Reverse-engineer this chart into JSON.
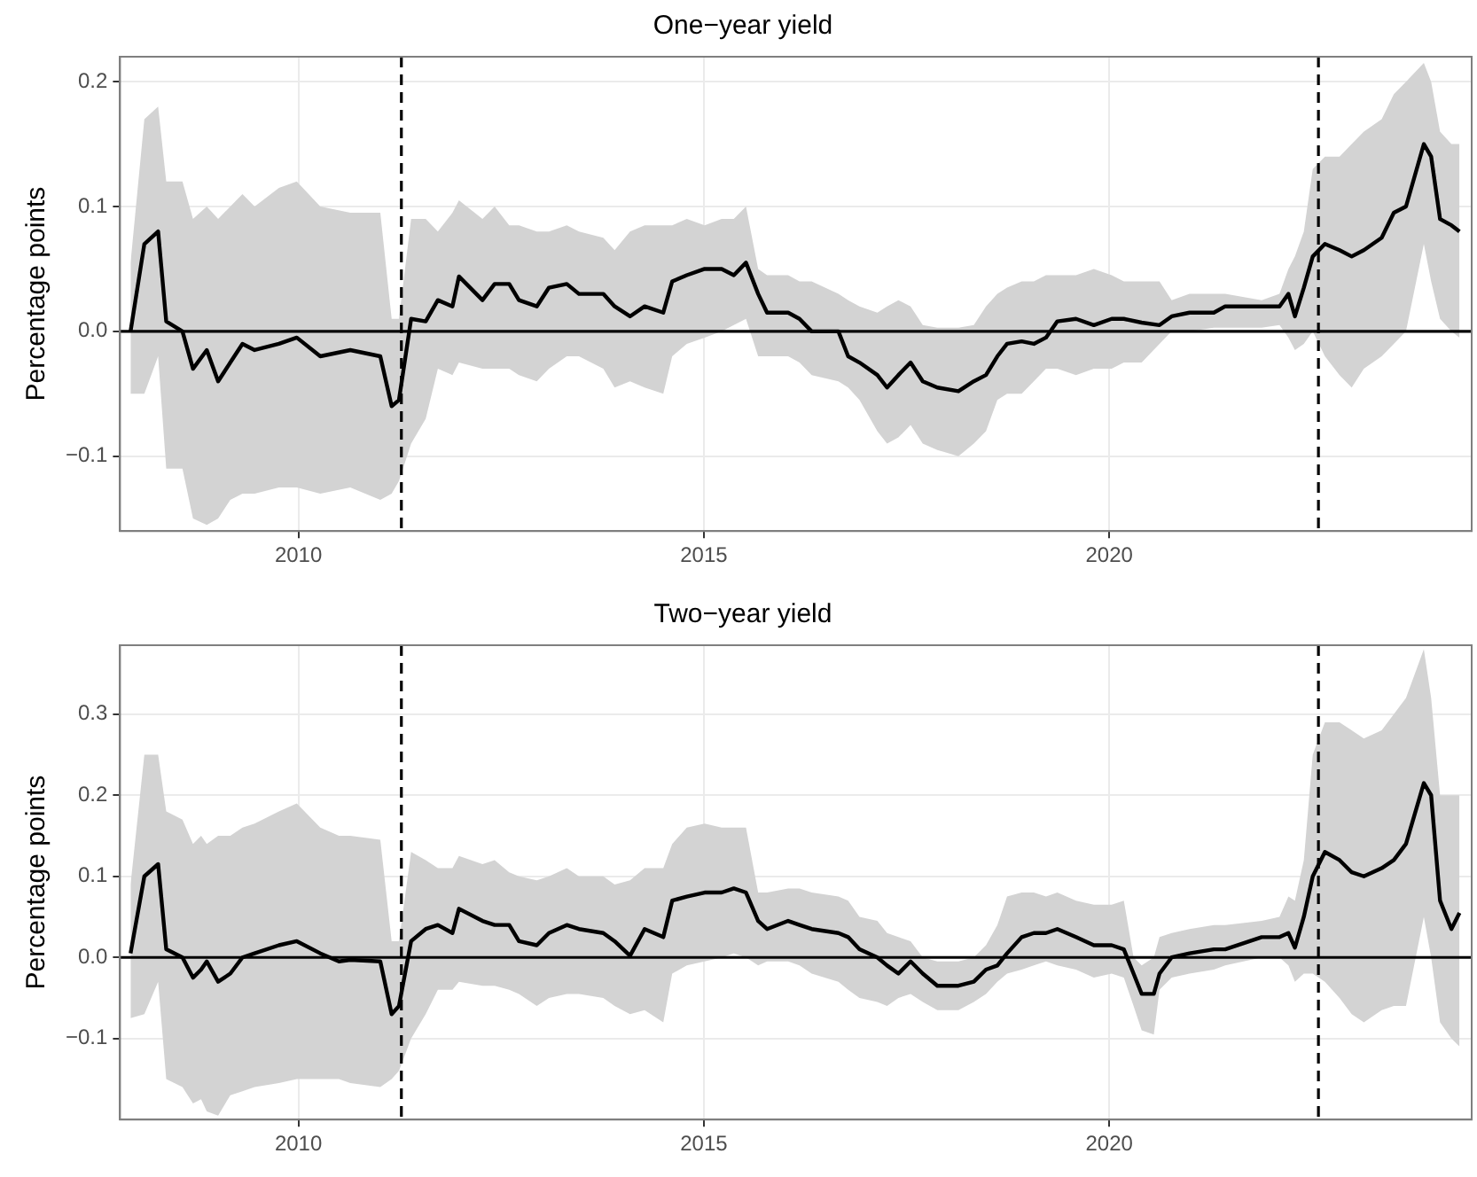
{
  "chart_data": [
    {
      "type": "line",
      "title": "One−year yield",
      "ylabel": "Percentage points",
      "grid": true,
      "xlim": [
        2007.8,
        2024.47
      ],
      "xticks": [
        2010,
        2015,
        2020
      ],
      "ylim": [
        -0.16,
        0.22
      ],
      "yticks": [
        {
          "value": -0.1,
          "label": "−0.1"
        },
        {
          "value": 0,
          "label": "0.0"
        },
        {
          "value": 0.1,
          "label": "0.1"
        },
        {
          "value": 0.2,
          "label": "0.2"
        }
      ],
      "ref_lines": [
        {
          "axis": "y",
          "value": 0,
          "color": "#000000",
          "line_style": "solid"
        },
        {
          "axis": "x",
          "value": 2011.27,
          "color": "#000000",
          "line_style": "dashed"
        },
        {
          "axis": "x",
          "value": 2022.58,
          "color": "#000000",
          "line_style": "dashed"
        }
      ],
      "x": [
        2007.93,
        2008.1,
        2008.27,
        2008.37,
        2008.57,
        2008.7,
        2008.87,
        2009.01,
        2009.16,
        2009.31,
        2009.46,
        2009.76,
        2009.98,
        2010.27,
        2010.64,
        2011.01,
        2011.15,
        2011.24,
        2011.39,
        2011.57,
        2011.72,
        2011.9,
        2011.98,
        2012.27,
        2012.42,
        2012.6,
        2012.72,
        2012.94,
        2013.09,
        2013.31,
        2013.46,
        2013.76,
        2013.9,
        2014.09,
        2014.27,
        2014.5,
        2014.61,
        2014.79,
        2015.01,
        2015.22,
        2015.37,
        2015.52,
        2015.67,
        2015.78,
        2016.04,
        2016.18,
        2016.33,
        2016.66,
        2016.78,
        2016.92,
        2017.14,
        2017.26,
        2017.4,
        2017.55,
        2017.7,
        2017.88,
        2018.14,
        2018.33,
        2018.48,
        2018.62,
        2018.74,
        2018.92,
        2019.07,
        2019.22,
        2019.36,
        2019.59,
        2019.81,
        2020.03,
        2020.18,
        2020.4,
        2020.62,
        2020.77,
        2020.99,
        2021.29,
        2021.43,
        2021.88,
        2022.1,
        2022.21,
        2022.29,
        2022.4,
        2022.51,
        2022.66,
        2022.84,
        2022.99,
        2023.14,
        2023.36,
        2023.51,
        2023.66,
        2023.88,
        2023.97,
        2024.08,
        2024.22,
        2024.32
      ],
      "series": [
        {
          "color": "#000000",
          "values": [
            0,
            0.07,
            0.08,
            0.008,
            0,
            -0.03,
            -0.015,
            -0.04,
            -0.025,
            -0.01,
            -0.015,
            -0.01,
            -0.005,
            -0.02,
            -0.015,
            -0.02,
            -0.06,
            -0.055,
            0.01,
            0.008,
            0.025,
            0.02,
            0.044,
            0.025,
            0.038,
            0.038,
            0.025,
            0.02,
            0.035,
            0.038,
            0.03,
            0.03,
            0.02,
            0.012,
            0.02,
            0.015,
            0.04,
            0.045,
            0.05,
            0.05,
            0.045,
            0.055,
            0.03,
            0.015,
            0.015,
            0.01,
            0,
            0,
            -0.02,
            -0.025,
            -0.035,
            -0.045,
            -0.035,
            -0.025,
            -0.04,
            -0.045,
            -0.048,
            -0.04,
            -0.035,
            -0.02,
            -0.01,
            -0.008,
            -0.01,
            -0.005,
            0.008,
            0.01,
            0.005,
            0.01,
            0.01,
            0.007,
            0.005,
            0.012,
            0.015,
            0.015,
            0.02,
            0.02,
            0.02,
            0.03,
            0.012,
            0.035,
            0.06,
            0.07,
            0.065,
            0.06,
            0.065,
            0.075,
            0.095,
            0.1,
            0.15,
            0.14,
            0.09,
            0.085,
            0.08
          ],
          "upper": [
            0.055,
            0.17,
            0.18,
            0.12,
            0.12,
            0.09,
            0.1,
            0.09,
            0.1,
            0.11,
            0.1,
            0.115,
            0.12,
            0.1,
            0.095,
            0.095,
            0.01,
            0.01,
            0.09,
            0.09,
            0.08,
            0.095,
            0.105,
            0.09,
            0.1,
            0.085,
            0.085,
            0.08,
            0.08,
            0.085,
            0.08,
            0.075,
            0.065,
            0.08,
            0.085,
            0.085,
            0.085,
            0.09,
            0.085,
            0.09,
            0.09,
            0.1,
            0.05,
            0.045,
            0.045,
            0.04,
            0.04,
            0.03,
            0.025,
            0.02,
            0.015,
            0.02,
            0.025,
            0.02,
            0.005,
            0.003,
            0.003,
            0.005,
            0.02,
            0.03,
            0.035,
            0.04,
            0.04,
            0.045,
            0.045,
            0.045,
            0.05,
            0.045,
            0.04,
            0.04,
            0.04,
            0.025,
            0.03,
            0.03,
            0.03,
            0.025,
            0.03,
            0.05,
            0.06,
            0.08,
            0.13,
            0.14,
            0.14,
            0.15,
            0.16,
            0.17,
            0.19,
            0.2,
            0.215,
            0.2,
            0.16,
            0.15,
            0.15
          ],
          "lower": [
            -0.05,
            -0.05,
            -0.02,
            -0.11,
            -0.11,
            -0.15,
            -0.155,
            -0.15,
            -0.135,
            -0.13,
            -0.13,
            -0.125,
            -0.125,
            -0.13,
            -0.125,
            -0.135,
            -0.13,
            -0.12,
            -0.09,
            -0.07,
            -0.03,
            -0.035,
            -0.025,
            -0.03,
            -0.03,
            -0.03,
            -0.035,
            -0.04,
            -0.03,
            -0.02,
            -0.02,
            -0.03,
            -0.045,
            -0.04,
            -0.045,
            -0.05,
            -0.02,
            -0.01,
            -0.005,
            0,
            0.005,
            0.01,
            -0.02,
            -0.02,
            -0.02,
            -0.025,
            -0.035,
            -0.04,
            -0.045,
            -0.055,
            -0.08,
            -0.09,
            -0.085,
            -0.075,
            -0.09,
            -0.095,
            -0.1,
            -0.09,
            -0.08,
            -0.055,
            -0.05,
            -0.05,
            -0.04,
            -0.03,
            -0.03,
            -0.035,
            -0.03,
            -0.03,
            -0.025,
            -0.025,
            -0.01,
            0,
            0,
            0.003,
            0.003,
            0.003,
            0.005,
            -0.005,
            -0.015,
            -0.01,
            0,
            -0.02,
            -0.035,
            -0.045,
            -0.03,
            -0.02,
            -0.01,
            0,
            0.07,
            0.04,
            0.01,
            0,
            -0.005
          ]
        }
      ]
    },
    {
      "type": "line",
      "title": "Two−year yield",
      "ylabel": "Percentage points",
      "grid": true,
      "xlim": [
        2007.8,
        2024.47
      ],
      "xticks": [
        2010,
        2015,
        2020
      ],
      "ylim": [
        -0.2,
        0.385
      ],
      "yticks": [
        {
          "value": -0.1,
          "label": "−0.1"
        },
        {
          "value": 0,
          "label": "0.0"
        },
        {
          "value": 0.1,
          "label": "0.1"
        },
        {
          "value": 0.2,
          "label": "0.2"
        },
        {
          "value": 0.3,
          "label": "0.3"
        }
      ],
      "ref_lines": [
        {
          "axis": "y",
          "value": 0,
          "color": "#000000",
          "line_style": "solid"
        },
        {
          "axis": "x",
          "value": 2011.27,
          "color": "#000000",
          "line_style": "dashed"
        },
        {
          "axis": "x",
          "value": 2022.58,
          "color": "#000000",
          "line_style": "dashed"
        }
      ],
      "x": [
        2007.93,
        2008.1,
        2008.27,
        2008.37,
        2008.57,
        2008.7,
        2008.8,
        2008.87,
        2009.01,
        2009.16,
        2009.31,
        2009.46,
        2009.76,
        2009.98,
        2010.27,
        2010.5,
        2010.64,
        2011.01,
        2011.15,
        2011.24,
        2011.39,
        2011.57,
        2011.72,
        2011.9,
        2011.98,
        2012.27,
        2012.42,
        2012.6,
        2012.72,
        2012.94,
        2013.09,
        2013.31,
        2013.46,
        2013.76,
        2013.9,
        2014.09,
        2014.27,
        2014.5,
        2014.61,
        2014.79,
        2015.01,
        2015.22,
        2015.37,
        2015.52,
        2015.67,
        2015.78,
        2016.04,
        2016.18,
        2016.33,
        2016.66,
        2016.78,
        2016.92,
        2017.14,
        2017.26,
        2017.4,
        2017.55,
        2017.7,
        2017.88,
        2018.14,
        2018.33,
        2018.48,
        2018.62,
        2018.74,
        2018.92,
        2019.07,
        2019.22,
        2019.36,
        2019.59,
        2019.81,
        2020.03,
        2020.18,
        2020.3,
        2020.4,
        2020.55,
        2020.62,
        2020.77,
        2020.99,
        2021.29,
        2021.43,
        2021.88,
        2022.1,
        2022.21,
        2022.29,
        2022.4,
        2022.51,
        2022.66,
        2022.84,
        2022.99,
        2023.14,
        2023.36,
        2023.51,
        2023.66,
        2023.88,
        2023.97,
        2024.08,
        2024.22,
        2024.32
      ],
      "series": [
        {
          "color": "#000000",
          "values": [
            0.005,
            0.1,
            0.115,
            0.01,
            0,
            -0.025,
            -0.015,
            -0.005,
            -0.03,
            -0.02,
            0,
            0.005,
            0.015,
            0.02,
            0.005,
            -0.005,
            -0.003,
            -0.005,
            -0.07,
            -0.06,
            0.02,
            0.035,
            0.04,
            0.03,
            0.06,
            0.045,
            0.04,
            0.04,
            0.02,
            0.015,
            0.03,
            0.04,
            0.035,
            0.03,
            0.02,
            0.002,
            0.035,
            0.025,
            0.07,
            0.075,
            0.08,
            0.08,
            0.085,
            0.08,
            0.045,
            0.035,
            0.045,
            0.04,
            0.035,
            0.03,
            0.025,
            0.01,
            0,
            -0.01,
            -0.02,
            -0.005,
            -0.02,
            -0.035,
            -0.035,
            -0.03,
            -0.015,
            -0.01,
            0.005,
            0.025,
            0.03,
            0.03,
            0.035,
            0.025,
            0.015,
            0.015,
            0.01,
            -0.02,
            -0.045,
            -0.045,
            -0.02,
            0,
            0.005,
            0.01,
            0.01,
            0.025,
            0.025,
            0.03,
            0.012,
            0.05,
            0.1,
            0.13,
            0.12,
            0.105,
            0.1,
            0.11,
            0.12,
            0.14,
            0.215,
            0.2,
            0.07,
            0.035,
            0.055
          ],
          "upper": [
            0.09,
            0.25,
            0.25,
            0.18,
            0.17,
            0.14,
            0.15,
            0.14,
            0.15,
            0.15,
            0.16,
            0.165,
            0.18,
            0.19,
            0.16,
            0.15,
            0.15,
            0.145,
            0.02,
            0.02,
            0.13,
            0.12,
            0.11,
            0.11,
            0.125,
            0.115,
            0.12,
            0.105,
            0.1,
            0.095,
            0.1,
            0.11,
            0.1,
            0.1,
            0.09,
            0.095,
            0.11,
            0.11,
            0.14,
            0.16,
            0.165,
            0.16,
            0.16,
            0.16,
            0.08,
            0.08,
            0.085,
            0.085,
            0.08,
            0.075,
            0.07,
            0.05,
            0.045,
            0.03,
            0.025,
            0.02,
            0,
            -0.005,
            -0.005,
            0,
            0.015,
            0.04,
            0.075,
            0.08,
            0.08,
            0.075,
            0.08,
            0.07,
            0.065,
            0.065,
            0.07,
            0,
            -0.01,
            0,
            0.025,
            0.03,
            0.035,
            0.04,
            0.04,
            0.045,
            0.05,
            0.075,
            0.07,
            0.12,
            0.25,
            0.29,
            0.29,
            0.28,
            0.27,
            0.28,
            0.3,
            0.32,
            0.38,
            0.32,
            0.2,
            0.2,
            0.2
          ],
          "lower": [
            -0.075,
            -0.07,
            -0.03,
            -0.15,
            -0.16,
            -0.18,
            -0.175,
            -0.19,
            -0.195,
            -0.17,
            -0.165,
            -0.16,
            -0.155,
            -0.15,
            -0.15,
            -0.15,
            -0.155,
            -0.16,
            -0.15,
            -0.14,
            -0.1,
            -0.07,
            -0.04,
            -0.04,
            -0.03,
            -0.035,
            -0.035,
            -0.04,
            -0.045,
            -0.06,
            -0.05,
            -0.045,
            -0.045,
            -0.05,
            -0.06,
            -0.07,
            -0.065,
            -0.08,
            -0.02,
            -0.01,
            -0.005,
            0,
            0.005,
            0,
            -0.01,
            -0.005,
            -0.005,
            -0.01,
            -0.02,
            -0.03,
            -0.04,
            -0.05,
            -0.055,
            -0.06,
            -0.05,
            -0.045,
            -0.055,
            -0.065,
            -0.065,
            -0.055,
            -0.045,
            -0.03,
            -0.02,
            -0.015,
            -0.01,
            -0.005,
            -0.01,
            -0.015,
            -0.025,
            -0.02,
            -0.025,
            -0.06,
            -0.09,
            -0.095,
            -0.04,
            -0.025,
            -0.02,
            -0.015,
            -0.01,
            0,
            0,
            -0.01,
            -0.03,
            -0.02,
            -0.02,
            -0.03,
            -0.05,
            -0.07,
            -0.08,
            -0.065,
            -0.06,
            -0.06,
            0.05,
            0,
            -0.08,
            -0.1,
            -0.11
          ]
        }
      ]
    }
  ]
}
